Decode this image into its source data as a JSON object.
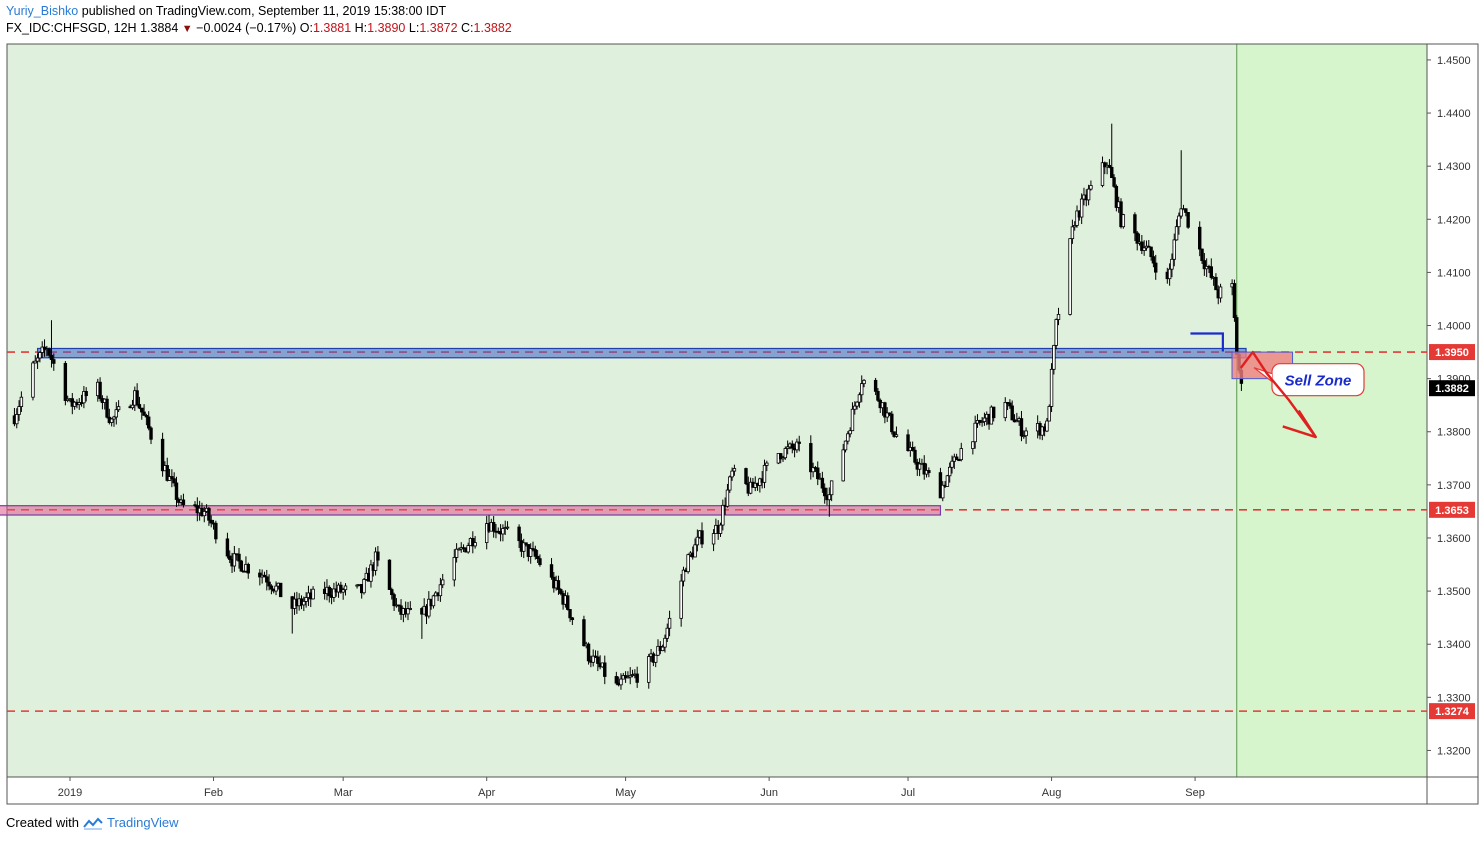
{
  "header": {
    "author": "Yuriy_Bishko",
    "published": "published on TradingView.com, September 11, 2019 15:38:00 IDT",
    "symbol": "FX_IDC:CHFSGD, 12H",
    "last": "1.3884",
    "change": "−0.0024 (−0.17%)",
    "o_label": "O:",
    "o_value": "1.3881",
    "h_label": "H:",
    "h_value": "1.3890",
    "l_label": "L:",
    "l_value": "1.3872",
    "c_label": "C:",
    "c_value": "1.3882"
  },
  "footer": {
    "created_with": "Created with",
    "brand": "TradingView"
  },
  "colors": {
    "background": "#dff0dc",
    "future_zone": "#d7f5cc",
    "candle": "#000000",
    "resistance_zone": "#3c63c9",
    "support_zone": "#e05a8a",
    "dashed_level": "#e53935",
    "sell_zone_fill": "#f08080",
    "sell_label_text": "#1a2bcc",
    "current_price_tag": "#000000"
  },
  "chart_data": {
    "type": "candlestick",
    "title": "",
    "xlabel": "",
    "ylabel": "",
    "ylim": [
      1.315,
      1.453
    ],
    "y_ticks": [
      "1.3200",
      "1.3300",
      "1.3400",
      "1.3500",
      "1.3600",
      "1.3700",
      "1.3800",
      "1.3900",
      "1.4000",
      "1.4100",
      "1.4200",
      "1.4300",
      "1.4400",
      "1.4500"
    ],
    "x_ticks": [
      "2019",
      "Feb",
      "Mar",
      "Apr",
      "May",
      "Jun",
      "Jul",
      "Aug",
      "Sep"
    ],
    "grid": false,
    "price_path": [
      [
        "2018-12-20",
        1.383
      ],
      [
        "2018-12-24",
        1.392
      ],
      [
        "2018-12-27",
        1.396
      ],
      [
        "2019-01-01",
        1.385
      ],
      [
        "2019-01-07",
        1.388
      ],
      [
        "2019-01-10",
        1.382
      ],
      [
        "2019-01-15",
        1.387
      ],
      [
        "2019-01-21",
        1.374
      ],
      [
        "2019-01-25",
        1.366
      ],
      [
        "2019-01-30",
        1.365
      ],
      [
        "2019-02-05",
        1.356
      ],
      [
        "2019-02-12",
        1.353
      ],
      [
        "2019-02-18",
        1.347
      ],
      [
        "2019-02-25",
        1.35
      ],
      [
        "2019-03-05",
        1.35
      ],
      [
        "2019-03-08",
        1.356
      ],
      [
        "2019-03-13",
        1.346
      ],
      [
        "2019-03-18",
        1.345
      ],
      [
        "2019-03-25",
        1.356
      ],
      [
        "2019-04-01",
        1.363
      ],
      [
        "2019-04-05",
        1.361
      ],
      [
        "2019-04-12",
        1.356
      ],
      [
        "2019-04-18",
        1.348
      ],
      [
        "2019-04-23",
        1.338
      ],
      [
        "2019-04-29",
        1.332
      ],
      [
        "2019-05-05",
        1.335
      ],
      [
        "2019-05-09",
        1.34
      ],
      [
        "2019-05-14",
        1.355
      ],
      [
        "2019-05-17",
        1.36
      ],
      [
        "2019-05-21",
        1.362
      ],
      [
        "2019-05-24",
        1.372
      ],
      [
        "2019-05-28",
        1.369
      ],
      [
        "2019-06-03",
        1.376
      ],
      [
        "2019-06-07",
        1.377
      ],
      [
        "2019-06-11",
        1.372
      ],
      [
        "2019-06-14",
        1.368
      ],
      [
        "2019-06-18",
        1.38
      ],
      [
        "2019-06-21",
        1.39
      ],
      [
        "2019-06-25",
        1.386
      ],
      [
        "2019-06-28",
        1.38
      ],
      [
        "2019-07-03",
        1.374
      ],
      [
        "2019-07-08",
        1.369
      ],
      [
        "2019-07-12",
        1.376
      ],
      [
        "2019-07-17",
        1.382
      ],
      [
        "2019-07-22",
        1.385
      ],
      [
        "2019-07-26",
        1.38
      ],
      [
        "2019-07-31",
        1.381
      ],
      [
        "2019-08-02",
        1.4
      ],
      [
        "2019-08-06",
        1.42
      ],
      [
        "2019-08-09",
        1.425
      ],
      [
        "2019-08-13",
        1.431
      ],
      [
        "2019-08-16",
        1.42
      ],
      [
        "2019-08-21",
        1.415
      ],
      [
        "2019-08-26",
        1.408
      ],
      [
        "2019-08-29",
        1.423
      ],
      [
        "2019-09-03",
        1.412
      ],
      [
        "2019-09-06",
        1.406
      ],
      [
        "2019-09-09",
        1.407
      ],
      [
        "2019-09-10",
        1.395
      ],
      [
        "2019-09-11",
        1.3882
      ]
    ],
    "extremes": [
      [
        "2018-12-28",
        1.401,
        "high"
      ],
      [
        "2019-02-18",
        1.342,
        "low"
      ],
      [
        "2019-03-18",
        1.341,
        "low"
      ],
      [
        "2019-04-28",
        1.328,
        "low"
      ],
      [
        "2019-08-14",
        1.438,
        "high"
      ],
      [
        "2019-08-29",
        1.433,
        "high"
      ],
      [
        "2019-06-14",
        1.364,
        "low"
      ]
    ],
    "horizontal_levels": [
      {
        "value": 1.395,
        "label": "1.3950",
        "style": "dashed"
      },
      {
        "value": 1.3653,
        "label": "1.3653",
        "style": "dashed"
      },
      {
        "value": 1.3274,
        "label": "1.3274",
        "style": "dashed"
      }
    ],
    "zones": [
      {
        "name": "resistance",
        "from": "2018-12-25",
        "to": "2019-09-12",
        "low": 1.3943,
        "high": 1.3953
      },
      {
        "name": "support",
        "from": "2018-12-15",
        "to": "2019-07-08",
        "low": 1.3647,
        "high": 1.3657
      }
    ],
    "sell_zone": {
      "label": "Sell Zone",
      "from": "2019-09-12",
      "to": "2019-09-16",
      "low": 1.3915,
      "high": 1.395
    },
    "current_price": {
      "value": 1.3882,
      "label": "1.3882"
    },
    "vertical_marker_date": "2019-09-10",
    "blue_step": {
      "from": "2019-08-31",
      "to": "2019-09-07",
      "value": 1.3985
    }
  }
}
